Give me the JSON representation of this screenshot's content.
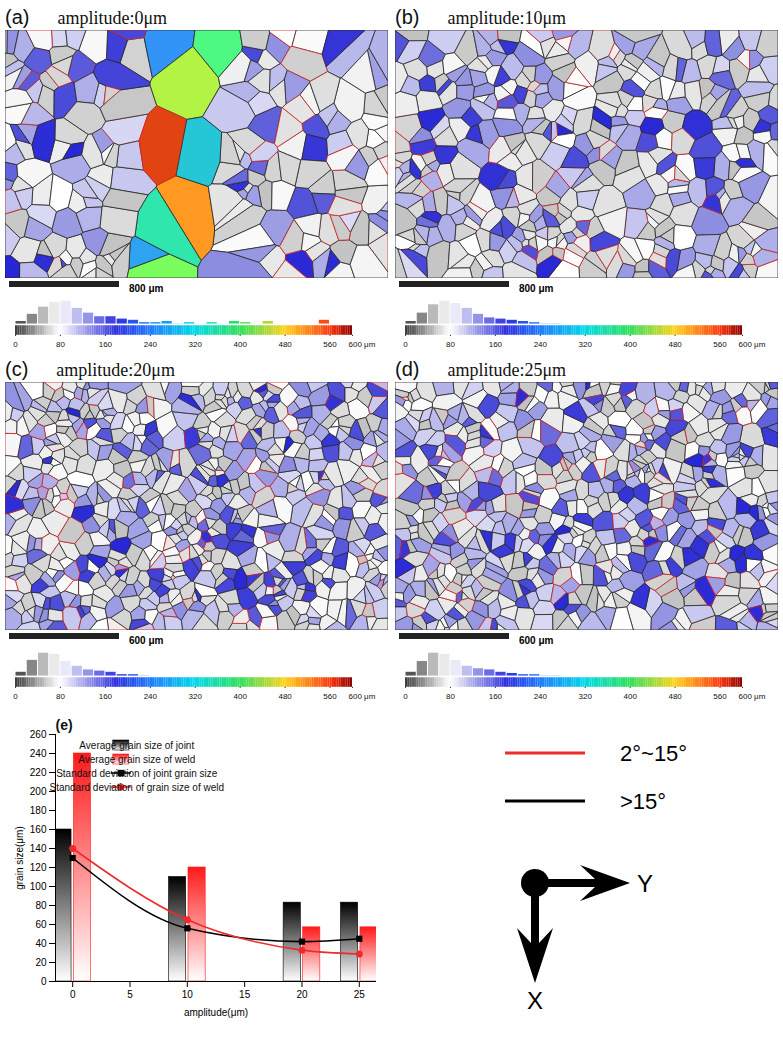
{
  "panels": [
    {
      "label": "(a)",
      "title": "amplitude:0μm",
      "scale_bar": "800 μm",
      "hist_counts": [
        0.15,
        0.45,
        0.75,
        0.95,
        1.0,
        0.7,
        0.5,
        0.35,
        0.35,
        0.25,
        0.2,
        0.1,
        0.1,
        0.15,
        0.05,
        0.1,
        0,
        0.1,
        0,
        0.15,
        0.1,
        0,
        0.15,
        0,
        0,
        0,
        0,
        0.2,
        0,
        0
      ]
    },
    {
      "label": "(b)",
      "title": "amplitude:10μm",
      "scale_bar": "800 μm",
      "hist_counts": [
        0.15,
        0.5,
        0.85,
        1.0,
        0.9,
        0.7,
        0.45,
        0.3,
        0.25,
        0.2,
        0.15,
        0.1,
        0.05,
        0.05,
        0,
        0,
        0,
        0,
        0,
        0,
        0,
        0,
        0,
        0,
        0,
        0,
        0,
        0,
        0,
        0
      ]
    },
    {
      "label": "(c)",
      "title": "amplitude:20μm",
      "scale_bar": "600 μm",
      "hist_counts": [
        0.2,
        0.7,
        1.0,
        0.95,
        0.65,
        0.45,
        0.3,
        0.25,
        0.2,
        0.1,
        0.1,
        0.05,
        0,
        0,
        0,
        0,
        0,
        0,
        0,
        0,
        0,
        0,
        0,
        0,
        0,
        0,
        0,
        0,
        0,
        0
      ]
    },
    {
      "label": "(d)",
      "title": "amplitude:25μm",
      "scale_bar": "600 μm",
      "hist_counts": [
        0.2,
        0.65,
        1.0,
        0.95,
        0.7,
        0.45,
        0.35,
        0.3,
        0.2,
        0.15,
        0.1,
        0.1,
        0.05,
        0.05,
        0,
        0,
        0,
        0,
        0,
        0,
        0,
        0,
        0,
        0,
        0,
        0,
        0,
        0,
        0,
        0
      ]
    }
  ],
  "colorbar": {
    "range": [
      0,
      600
    ],
    "ticks": [
      0,
      80,
      160,
      240,
      320,
      400,
      480,
      560,
      {
        "value": 600,
        "label": "600 μm"
      }
    ],
    "bins": [
      0,
      20,
      40,
      60,
      80,
      100,
      120,
      140,
      160,
      180,
      200,
      220,
      240,
      260,
      280,
      300,
      320,
      340,
      360,
      380,
      400,
      420,
      440,
      460,
      480,
      500,
      520,
      540,
      560,
      580,
      600
    ]
  },
  "chart_data": {
    "type": "bar",
    "panel_label": "(e)",
    "x_label": "amplitude(μm)",
    "y_label": "grain size(μm)",
    "x": [
      0,
      10,
      20,
      25
    ],
    "series": [
      {
        "name": "Average grain size of joint",
        "type": "bar",
        "color": "#000000",
        "values": [
          160,
          110,
          83,
          83
        ]
      },
      {
        "name": "Average grain size of weld",
        "type": "bar",
        "color": "#ff1a1a",
        "values": [
          240,
          120,
          57,
          57
        ]
      },
      {
        "name": "Standard deviation of joint grain size",
        "type": "line",
        "color": "#000000",
        "marker": "square",
        "line_style": "solid",
        "values": [
          130,
          56,
          42,
          45
        ]
      },
      {
        "name": "Standard deviation of grain size of weld",
        "type": "line",
        "color": "#ee2b2b",
        "marker": "circle",
        "line_style": "solid",
        "values": [
          140,
          65,
          33,
          29
        ]
      }
    ],
    "xlim": [
      -1.5,
      26.5
    ],
    "xticks": [
      0,
      5,
      10,
      15,
      20,
      25
    ],
    "ylim": [
      0,
      260
    ],
    "yticks": [
      0,
      20,
      40,
      60,
      80,
      100,
      120,
      140,
      160,
      180,
      200,
      220,
      240,
      260
    ],
    "legend": "top-right"
  },
  "boundary_legend": [
    {
      "label": "2°~15°",
      "color": "#ee2b2b"
    },
    {
      "label": ">15°",
      "color": "#000000"
    }
  ],
  "axes_icon": {
    "x_label": "X",
    "y_label": "Y"
  }
}
